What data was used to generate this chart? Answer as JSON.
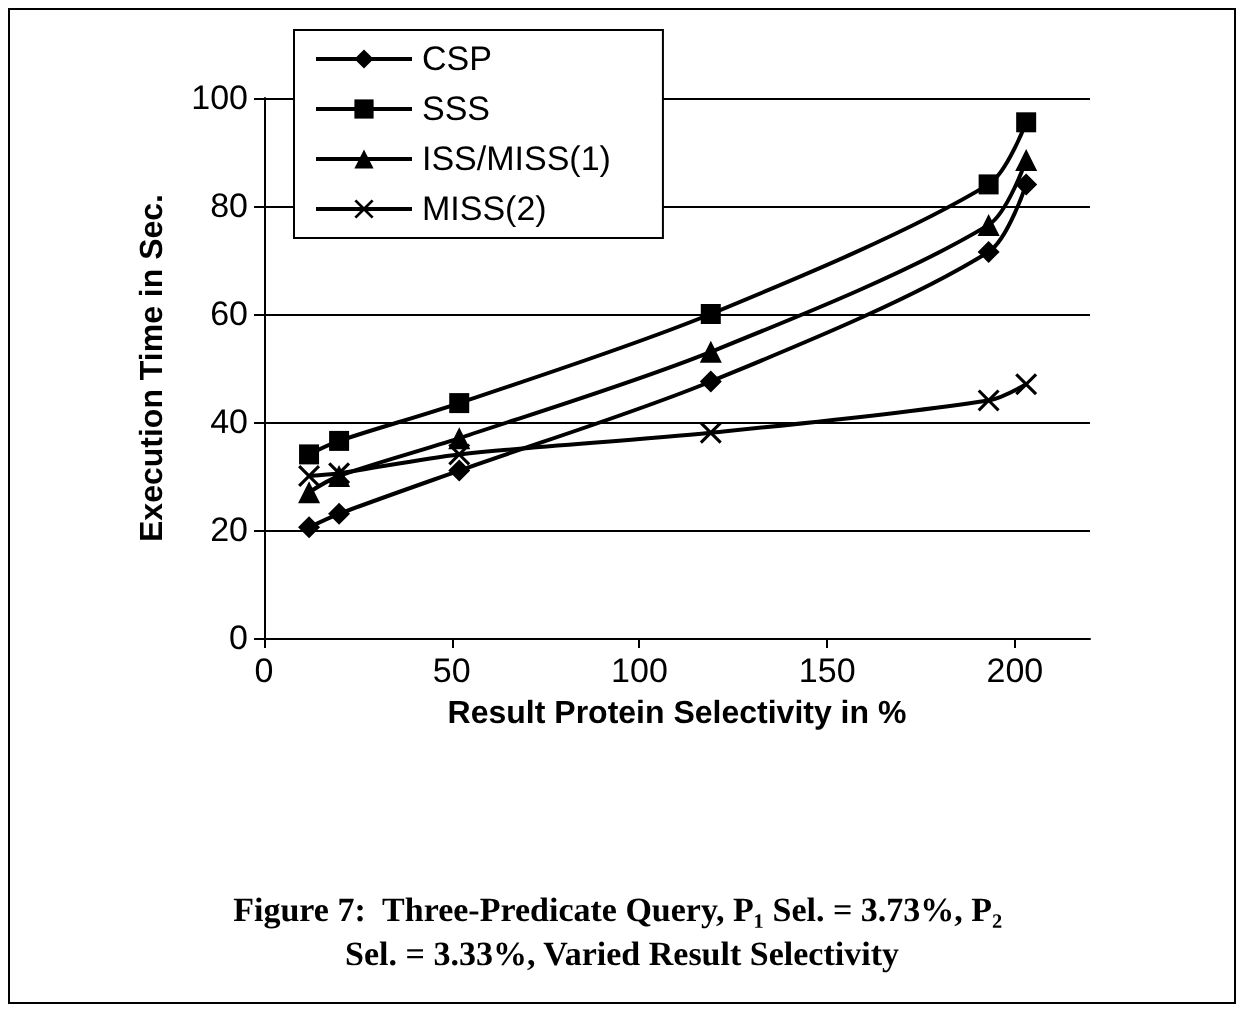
{
  "chart_data": {
    "type": "line",
    "title": "Figure 7:  Three-Predicate Query, P₁ Sel. = 3.73%, P₂ Sel. = 3.33%, Varied Result Selectivity",
    "xlabel": "Result Protein Selectivity in %",
    "ylabel": "Execution Time in Sec.",
    "x": [
      12,
      20,
      52,
      119,
      193,
      203
    ],
    "series": [
      {
        "name": "CSP",
        "color": "#000000",
        "marker": "diamond",
        "values": [
          20.5,
          23,
          31,
          47.5,
          71.5,
          84
        ]
      },
      {
        "name": "SSS",
        "color": "#000000",
        "marker": "square",
        "values": [
          34,
          36.5,
          43.5,
          60,
          84,
          95.5
        ]
      },
      {
        "name": "ISS/MISS(1)",
        "color": "#000000",
        "marker": "triangle",
        "values": [
          27,
          30,
          37,
          53,
          76.5,
          88.5
        ]
      },
      {
        "name": "MISS(2)",
        "color": "#000000",
        "marker": "cross",
        "values": [
          30,
          30.5,
          34,
          38,
          44,
          47
        ]
      }
    ],
    "xlim": [
      0,
      220
    ],
    "xticks": [
      0,
      50,
      100,
      150,
      200
    ],
    "ylim": [
      0,
      100
    ],
    "yticks": [
      0,
      20,
      40,
      60,
      80,
      100
    ],
    "grid": "y",
    "legend": "top left",
    "line_style": "solid"
  }
}
